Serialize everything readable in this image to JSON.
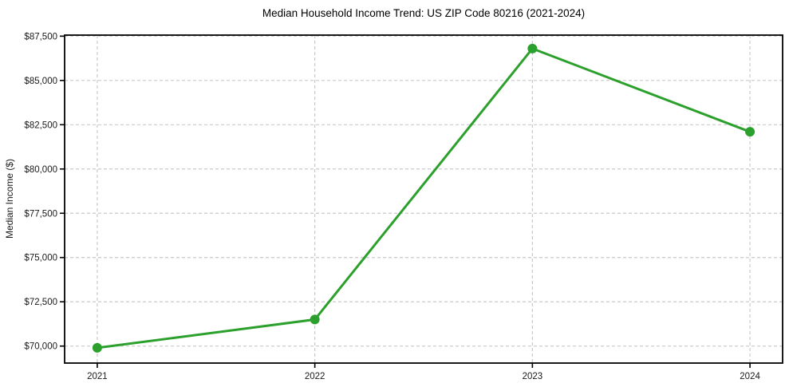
{
  "chart_data": {
    "type": "line",
    "title": "Median Household Income Trend: US ZIP Code 80216 (2021-2024)",
    "xlabel": "",
    "ylabel": "Median Income ($)",
    "x": [
      2021,
      2022,
      2023,
      2024
    ],
    "xtick_labels": [
      "2021",
      "2022",
      "2023",
      "2024"
    ],
    "series": [
      {
        "name": "Median Household Income",
        "values": [
          69900,
          71500,
          86800,
          82100
        ]
      }
    ],
    "yticks": [
      70000,
      72500,
      75000,
      77500,
      80000,
      82500,
      85000,
      87500
    ],
    "ytick_labels": [
      "$70,000",
      "$72,500",
      "$75,000",
      "$77,500",
      "$80,000",
      "$82,500",
      "$85,000",
      "$87,500"
    ],
    "xlim": [
      2020.85,
      2024.15
    ],
    "ylim": [
      69040,
      87560
    ],
    "grid": true,
    "grid_style": "dashed",
    "legend_position": "none",
    "marker": "circle",
    "colors": {
      "line": "#2ca02c",
      "marker": "#2ca02c",
      "grid": "#c9c9c9",
      "spine": "#000000",
      "text": "#1a1a1a",
      "title": "#000000",
      "background": "#ffffff"
    }
  }
}
